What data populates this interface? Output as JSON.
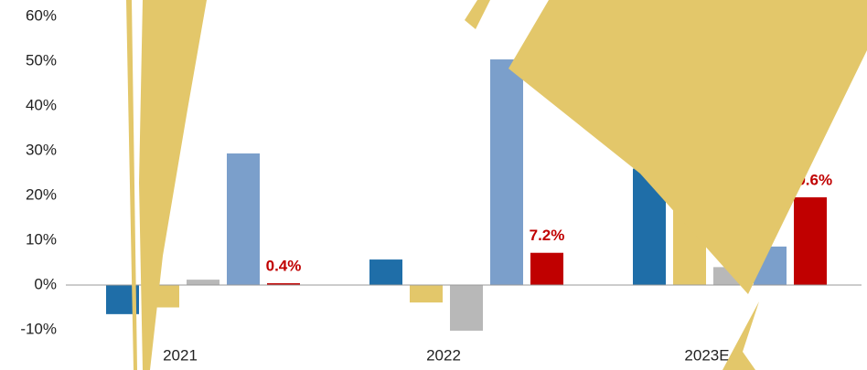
{
  "chart_data": {
    "type": "bar",
    "categories": [
      "2021",
      "2022",
      "2023E"
    ],
    "series": [
      {
        "color": "#1f6ea8",
        "values": [
          -6.5,
          5.7,
          26
        ]
      },
      {
        "color": "#e3c76a",
        "values": [
          -5,
          -3.9,
          20
        ]
      },
      {
        "color": "#b8b8b8",
        "values": [
          1.2,
          -10.2,
          4
        ]
      },
      {
        "color": "#7b9fcb",
        "values": [
          29.4,
          50.4,
          8.6
        ]
      },
      {
        "color": "#c00000",
        "values": [
          0.4,
          7.2,
          19.6
        ],
        "value_labels": [
          "0.4%",
          "7.2%",
          "19.6%"
        ]
      }
    ],
    "ylim": [
      -10,
      60
    ],
    "yticks": [
      {
        "value": -10,
        "label": "-10%"
      },
      {
        "value": 0,
        "label": "0%"
      },
      {
        "value": 10,
        "label": "10%"
      },
      {
        "value": 20,
        "label": "20%"
      },
      {
        "value": 30,
        "label": "30%"
      },
      {
        "value": 40,
        "label": "40%"
      },
      {
        "value": 50,
        "label": "50%"
      },
      {
        "value": 60,
        "label": "60%"
      }
    ],
    "grid": false
  }
}
